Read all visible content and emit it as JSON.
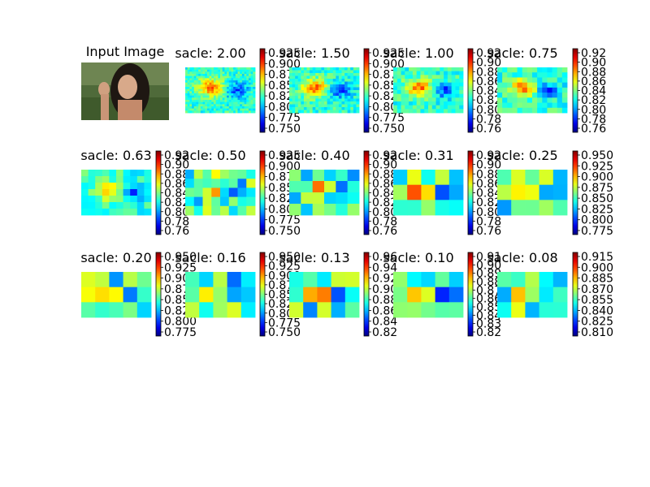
{
  "chart_data": [
    {
      "type": "image",
      "title": "Input Image",
      "content": "photo"
    },
    {
      "type": "heatmap",
      "title": "sacle: 2.00",
      "colorbar_ticks": [
        "0.925",
        "0.900",
        "0.875",
        "0.850",
        "0.825",
        "0.800",
        "0.775",
        "0.750"
      ]
    },
    {
      "type": "heatmap",
      "title": "sacle: 1.50",
      "colorbar_ticks": [
        "0.925",
        "0.900",
        "0.875",
        "0.850",
        "0.825",
        "0.800",
        "0.775",
        "0.750"
      ]
    },
    {
      "type": "heatmap",
      "title": "sacle: 1.00",
      "colorbar_ticks": [
        "0.92",
        "0.90",
        "0.88",
        "0.86",
        "0.84",
        "0.82",
        "0.80",
        "0.78",
        "0.76"
      ]
    },
    {
      "type": "heatmap",
      "title": "sacle: 0.75",
      "colorbar_ticks": [
        "0.92",
        "0.90",
        "0.88",
        "0.86",
        "0.84",
        "0.82",
        "0.80",
        "0.78",
        "0.76"
      ]
    },
    {
      "type": "heatmap",
      "title": "sacle: 0.63",
      "colorbar_ticks": [
        "0.92",
        "0.90",
        "0.88",
        "0.86",
        "0.84",
        "0.82",
        "0.80",
        "0.78",
        "0.76"
      ]
    },
    {
      "type": "heatmap",
      "title": "sacle: 0.50",
      "colorbar_ticks": [
        "0.925",
        "0.900",
        "0.875",
        "0.850",
        "0.825",
        "0.800",
        "0.775",
        "0.750"
      ]
    },
    {
      "type": "heatmap",
      "title": "sacle: 0.40",
      "colorbar_ticks": [
        "0.92",
        "0.90",
        "0.88",
        "0.86",
        "0.84",
        "0.82",
        "0.80",
        "0.78",
        "0.76"
      ]
    },
    {
      "type": "heatmap",
      "title": "sacle: 0.31",
      "colorbar_ticks": [
        "0.92",
        "0.90",
        "0.88",
        "0.86",
        "0.84",
        "0.82",
        "0.80",
        "0.78",
        "0.76"
      ]
    },
    {
      "type": "heatmap",
      "title": "sacle: 0.25",
      "colorbar_ticks": [
        "0.950",
        "0.925",
        "0.900",
        "0.875",
        "0.850",
        "0.825",
        "0.800",
        "0.775"
      ]
    },
    {
      "type": "heatmap",
      "title": "sacle: 0.20",
      "colorbar_ticks": [
        "0.950",
        "0.925",
        "0.900",
        "0.875",
        "0.850",
        "0.825",
        "0.800",
        "0.775"
      ]
    },
    {
      "type": "heatmap",
      "title": "sacle: 0.16",
      "colorbar_ticks": [
        "0.950",
        "0.925",
        "0.900",
        "0.875",
        "0.850",
        "0.825",
        "0.800",
        "0.775",
        "0.750"
      ]
    },
    {
      "type": "heatmap",
      "title": "sacle: 0.13",
      "colorbar_ticks": [
        "0.96",
        "0.94",
        "0.92",
        "0.90",
        "0.88",
        "0.86",
        "0.84",
        "0.82"
      ]
    },
    {
      "type": "heatmap",
      "title": "sacle: 0.10",
      "colorbar_ticks": [
        "0.91",
        "0.90",
        "0.89",
        "0.88",
        "0.87",
        "0.86",
        "0.85",
        "0.84",
        "0.83",
        "0.82"
      ]
    },
    {
      "type": "heatmap",
      "title": "sacle: 0.08",
      "colorbar_ticks": [
        "0.915",
        "0.900",
        "0.885",
        "0.870",
        "0.855",
        "0.840",
        "0.825",
        "0.810"
      ]
    }
  ]
}
